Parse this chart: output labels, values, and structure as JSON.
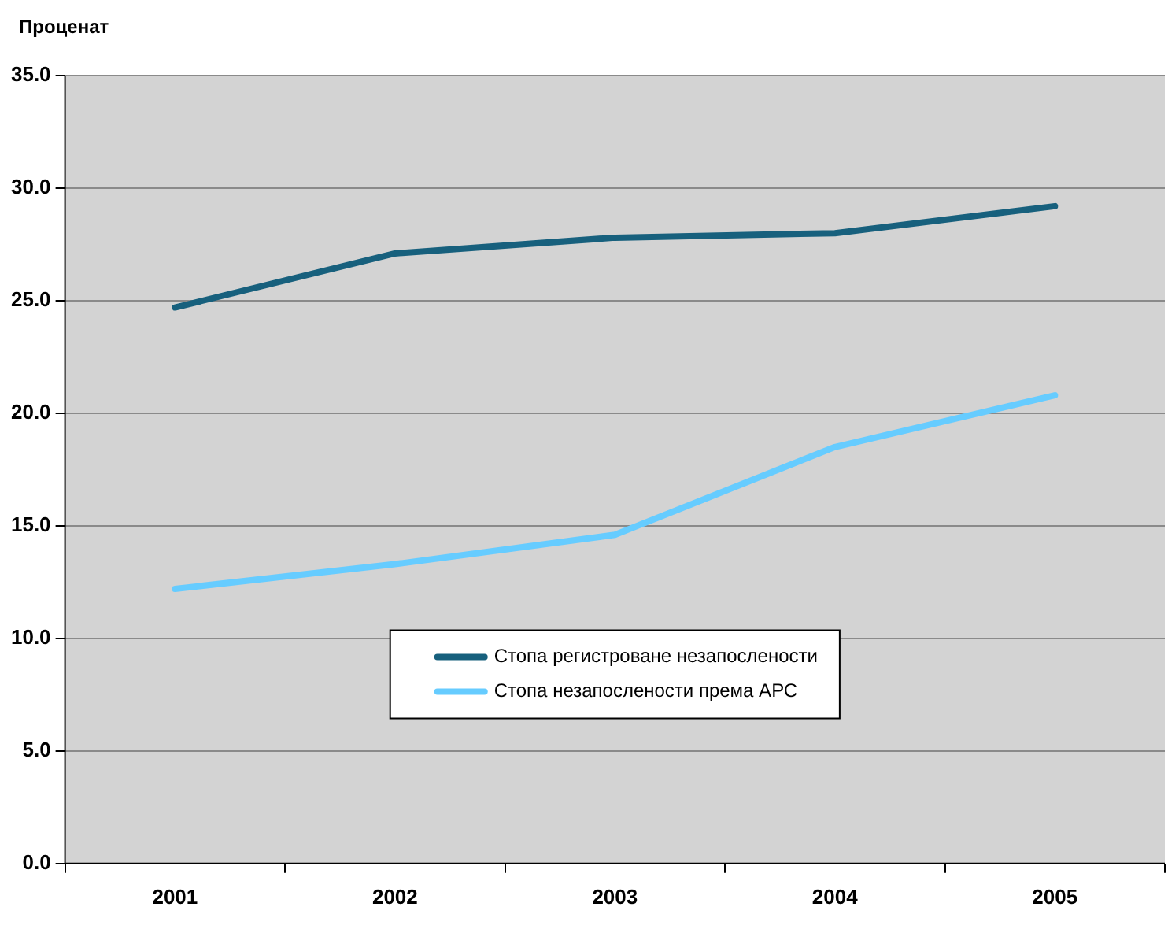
{
  "chart_data": {
    "type": "line",
    "ylabel": "Проценат",
    "categories": [
      "2001",
      "2002",
      "2003",
      "2004",
      "2005"
    ],
    "series": [
      {
        "name": "Стопа регистроване незапослености",
        "color": "#17607d",
        "values": [
          24.7,
          27.1,
          27.8,
          28.0,
          29.2
        ]
      },
      {
        "name": "Стопа незапослености према АРС",
        "color": "#66ccff",
        "values": [
          12.2,
          13.3,
          14.6,
          18.5,
          20.8
        ]
      }
    ],
    "ylim": [
      0,
      35
    ],
    "yticks": [
      {
        "value": 0,
        "label": "0.0"
      },
      {
        "value": 5,
        "label": "5.0"
      },
      {
        "value": 10,
        "label": "10.0"
      },
      {
        "value": 15,
        "label": "15.0"
      },
      {
        "value": 20,
        "label": "20.0"
      },
      {
        "value": 25,
        "label": "25.0"
      },
      {
        "value": 30,
        "label": "30.0"
      },
      {
        "value": 35,
        "label": "35.0"
      }
    ],
    "grid": "y",
    "legend": "center",
    "marker": "none",
    "line_style": "solid"
  }
}
